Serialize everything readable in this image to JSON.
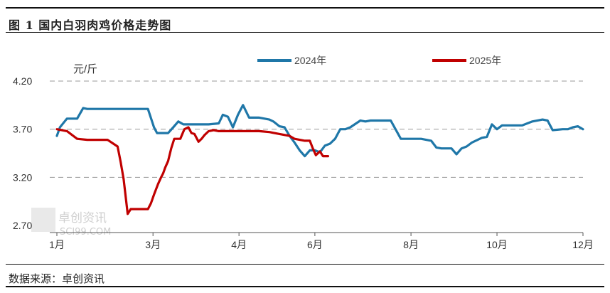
{
  "header": {
    "title": "图 1 国内白羽肉鸡价格走势图"
  },
  "footer": {
    "source": "数据来源：卓创资讯"
  },
  "watermark": {
    "text": "卓创资讯",
    "url": "SCI99.COM"
  },
  "colors": {
    "series_2024": "#1f77a8",
    "series_2025": "#c00000",
    "grid": "#9a9a9a"
  },
  "chart_data": {
    "type": "line",
    "unit_label": "元/斤",
    "ylim": [
      2.7,
      4.2
    ],
    "yticks": [
      "4.20",
      "3.70",
      "3.20",
      "2.70"
    ],
    "ytick_values": [
      4.2,
      3.7,
      3.2,
      2.7
    ],
    "xlim": [
      1,
      53
    ],
    "xticks": [
      "1月",
      "3月",
      "4月",
      "6月",
      "8月",
      "10月",
      "12月"
    ],
    "xtick_values": [
      1,
      10.5,
      19,
      26.5,
      36,
      44.5,
      53
    ],
    "grid": "horizontal dashed",
    "legend_position": "top-center",
    "series": [
      {
        "name": "2024年",
        "color": "#1f77a8",
        "x": [
          1,
          1.3,
          2,
          3,
          3.6,
          4,
          5,
          6,
          7,
          8,
          9,
          10,
          10.6,
          10.9,
          11.5,
          12,
          12.5,
          13,
          13.5,
          14,
          15,
          16,
          17,
          17.4,
          17.9,
          18.4,
          18.9,
          19.4,
          20,
          21,
          22,
          22.4,
          23,
          23.5,
          24,
          24.5,
          25,
          25.5,
          26,
          26.5,
          27,
          27.5,
          28,
          28.5,
          29,
          29.5,
          30,
          31,
          31.5,
          32,
          32.5,
          33,
          34,
          35,
          36,
          37,
          38,
          38.5,
          39,
          40,
          40.5,
          41,
          41.5,
          42,
          43,
          43.5,
          44,
          44.5,
          45,
          46,
          47,
          48,
          49,
          49.5,
          50,
          51,
          51.5,
          52,
          52.5,
          53
        ],
        "values": [
          3.63,
          3.72,
          3.81,
          3.81,
          3.92,
          3.91,
          3.91,
          3.91,
          3.91,
          3.91,
          3.91,
          3.91,
          3.72,
          3.66,
          3.66,
          3.66,
          3.72,
          3.78,
          3.75,
          3.75,
          3.75,
          3.75,
          3.76,
          3.85,
          3.83,
          3.72,
          3.85,
          3.95,
          3.82,
          3.82,
          3.8,
          3.78,
          3.73,
          3.72,
          3.63,
          3.56,
          3.48,
          3.42,
          3.48,
          3.48,
          3.46,
          3.53,
          3.55,
          3.6,
          3.7,
          3.7,
          3.72,
          3.79,
          3.78,
          3.79,
          3.79,
          3.79,
          3.79,
          3.6,
          3.6,
          3.6,
          3.58,
          3.51,
          3.5,
          3.5,
          3.44,
          3.5,
          3.52,
          3.56,
          3.61,
          3.62,
          3.75,
          3.7,
          3.74,
          3.74,
          3.74,
          3.78,
          3.8,
          3.79,
          3.69,
          3.7,
          3.7,
          3.72,
          3.73,
          3.7
        ]
      },
      {
        "name": "2025年",
        "color": "#c00000",
        "x": [
          1,
          2,
          3,
          4,
          5,
          6,
          7,
          7.3,
          7.6,
          8,
          8.3,
          9,
          10,
          10.3,
          10.6,
          11,
          11.3,
          11.5,
          11.7,
          12,
          12.3,
          12.6,
          12.9,
          13.2,
          13.6,
          14,
          14.3,
          14.6,
          15,
          15.3,
          15.6,
          16,
          16.5,
          17,
          18,
          19,
          20,
          21,
          22,
          23,
          24,
          24.5,
          25,
          25.5,
          26,
          26.3,
          26.6,
          27,
          27.3,
          27.8
        ],
        "values": [
          3.7,
          3.68,
          3.6,
          3.59,
          3.59,
          3.59,
          3.52,
          3.36,
          3.18,
          2.82,
          2.87,
          2.87,
          2.87,
          2.93,
          3.02,
          3.13,
          3.2,
          3.24,
          3.3,
          3.37,
          3.5,
          3.6,
          3.6,
          3.6,
          3.7,
          3.72,
          3.66,
          3.65,
          3.57,
          3.6,
          3.64,
          3.68,
          3.69,
          3.68,
          3.68,
          3.68,
          3.68,
          3.68,
          3.67,
          3.65,
          3.63,
          3.6,
          3.59,
          3.58,
          3.58,
          3.5,
          3.43,
          3.47,
          3.42,
          3.42
        ]
      }
    ]
  }
}
